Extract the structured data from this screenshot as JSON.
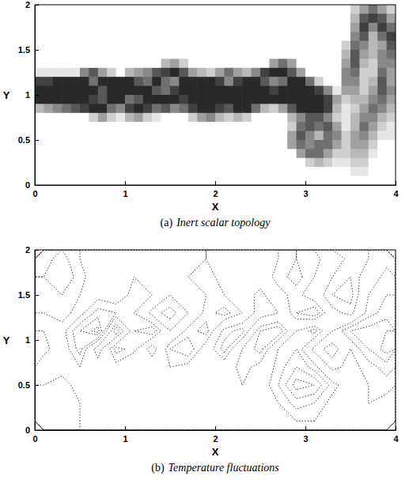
{
  "chart_data": [
    {
      "type": "heatmap",
      "label": "(a)",
      "caption": "Inert scalar topology",
      "xlabel": "X",
      "ylabel": "Y",
      "xlim": [
        0,
        4
      ],
      "ylim": [
        0,
        2
      ],
      "xticks": [
        0,
        1,
        2,
        3,
        4
      ],
      "yticks": [
        0,
        0.5,
        1,
        1.5,
        2
      ],
      "color": "#111111",
      "zlim": [
        0,
        1
      ],
      "cells": [
        [
          0,
          0,
          0,
          0,
          0,
          0,
          0,
          0,
          0,
          0,
          0,
          0,
          0,
          0,
          0,
          0,
          0,
          0,
          0,
          0,
          0,
          0,
          0,
          0,
          0,
          0,
          0,
          0,
          0,
          0,
          0,
          0,
          0,
          0,
          0,
          0.2,
          0.4,
          0.6,
          0.4,
          0.2
        ],
        [
          0,
          0,
          0,
          0,
          0,
          0,
          0,
          0,
          0,
          0,
          0,
          0,
          0,
          0,
          0,
          0,
          0,
          0,
          0,
          0,
          0,
          0,
          0,
          0,
          0,
          0,
          0,
          0,
          0,
          0,
          0,
          0,
          0,
          0,
          0,
          0.3,
          0.7,
          0.8,
          0.7,
          0.4
        ],
        [
          0,
          0,
          0,
          0,
          0,
          0,
          0,
          0,
          0,
          0,
          0,
          0,
          0,
          0,
          0,
          0,
          0,
          0,
          0,
          0,
          0,
          0,
          0,
          0,
          0,
          0,
          0,
          0,
          0,
          0,
          0,
          0,
          0,
          0,
          0,
          0.4,
          0.8,
          0.5,
          0.8,
          0.6
        ],
        [
          0,
          0,
          0,
          0,
          0,
          0,
          0,
          0,
          0,
          0,
          0,
          0,
          0,
          0,
          0,
          0,
          0,
          0,
          0,
          0,
          0,
          0,
          0,
          0,
          0,
          0,
          0,
          0,
          0,
          0,
          0,
          0,
          0,
          0,
          0,
          0.5,
          0.7,
          0.3,
          0.6,
          0.8
        ],
        [
          0,
          0,
          0,
          0,
          0,
          0,
          0,
          0,
          0,
          0,
          0,
          0,
          0,
          0,
          0,
          0,
          0,
          0,
          0,
          0,
          0,
          0,
          0,
          0,
          0,
          0,
          0,
          0,
          0,
          0,
          0,
          0,
          0,
          0,
          0.2,
          0.6,
          0.5,
          0.3,
          0.4,
          0.7
        ],
        [
          0,
          0,
          0,
          0,
          0,
          0,
          0,
          0,
          0,
          0,
          0,
          0,
          0,
          0,
          0,
          0,
          0,
          0,
          0,
          0,
          0,
          0,
          0,
          0,
          0,
          0,
          0,
          0,
          0,
          0,
          0,
          0,
          0,
          0,
          0.3,
          0.7,
          0.4,
          0.3,
          0.5,
          0.6
        ],
        [
          0,
          0,
          0,
          0,
          0,
          0,
          0,
          0,
          0,
          0,
          0,
          0,
          0,
          0,
          0.3,
          0.4,
          0.2,
          0,
          0,
          0,
          0,
          0,
          0,
          0,
          0,
          0,
          0.4,
          0.6,
          0.4,
          0,
          0,
          0,
          0,
          0,
          0.4,
          0.7,
          0.3,
          0.2,
          0.5,
          0.5
        ],
        [
          0.1,
          0.1,
          0.1,
          0.1,
          0.1,
          0.5,
          0.7,
          0.4,
          0.2,
          0,
          0.3,
          0.4,
          0.5,
          0.7,
          0.8,
          0.9,
          0.7,
          0.4,
          0.3,
          0.2,
          0.4,
          0.6,
          0.4,
          0.3,
          0.5,
          0.8,
          0.9,
          0.9,
          0.7,
          0.4,
          0,
          0,
          0,
          0,
          0.5,
          0.6,
          0.2,
          0.2,
          0.6,
          0.4
        ],
        [
          0.8,
          0.8,
          0.9,
          0.9,
          0.9,
          0.9,
          0.6,
          0.9,
          0.9,
          0.9,
          0.9,
          0.7,
          0.6,
          0.9,
          0.6,
          0.5,
          0.9,
          0.9,
          0.9,
          0.9,
          0.8,
          0.5,
          0.8,
          0.9,
          0.9,
          0.7,
          0.5,
          0.6,
          0.9,
          0.9,
          0.6,
          0.2,
          0,
          0,
          0.5,
          0.5,
          0.2,
          0.3,
          0.7,
          0.4
        ],
        [
          0.9,
          0.9,
          0.9,
          0.9,
          0.9,
          0.9,
          0.9,
          0.7,
          0.9,
          0.9,
          0.9,
          0.9,
          0.9,
          0.7,
          0.6,
          0.8,
          0.9,
          0.9,
          0.9,
          0.9,
          0.9,
          0.9,
          0.9,
          0.9,
          0.9,
          0.9,
          0.8,
          0.9,
          0.9,
          0.9,
          0.9,
          0.8,
          0.5,
          0.1,
          0.4,
          0.4,
          0.2,
          0.4,
          0.7,
          0.5
        ],
        [
          0.9,
          0.9,
          0.9,
          0.9,
          0.9,
          0.9,
          0.8,
          0.7,
          0.9,
          0.9,
          0.6,
          0.7,
          0.9,
          0.9,
          0.9,
          0.9,
          0.8,
          0.9,
          0.9,
          0.9,
          0.9,
          0.9,
          0.9,
          0.9,
          0.9,
          0.9,
          0.9,
          0.9,
          0.9,
          0.9,
          0.9,
          0.9,
          0.8,
          0.4,
          0.2,
          0.3,
          0.3,
          0.5,
          0.6,
          0.4
        ],
        [
          0.3,
          0.4,
          0.5,
          0.6,
          0.7,
          0.8,
          0.9,
          0.9,
          0.6,
          0.5,
          0.8,
          0.9,
          0.8,
          0.6,
          0.7,
          0.5,
          0.6,
          0.8,
          0.9,
          0.9,
          0.8,
          0.7,
          0.9,
          0.9,
          0.6,
          0.3,
          0.2,
          0.4,
          0.7,
          0.9,
          0.9,
          0.9,
          0.8,
          0.3,
          0.1,
          0.2,
          0.4,
          0.6,
          0.5,
          0.3
        ],
        [
          0,
          0,
          0,
          0,
          0,
          0,
          0.2,
          0.4,
          0.2,
          0.1,
          0.3,
          0.4,
          0.2,
          0.1,
          0,
          0,
          0,
          0.2,
          0.4,
          0.5,
          0.3,
          0.2,
          0.3,
          0.2,
          0,
          0,
          0,
          0,
          0.3,
          0.5,
          0.7,
          0.7,
          0.5,
          0.2,
          0.1,
          0.3,
          0.5,
          0.5,
          0.3,
          0.2
        ],
        [
          0,
          0,
          0,
          0,
          0,
          0,
          0,
          0,
          0,
          0,
          0,
          0,
          0,
          0,
          0,
          0,
          0,
          0,
          0,
          0,
          0,
          0,
          0,
          0,
          0,
          0,
          0,
          0,
          0.2,
          0.6,
          0.7,
          0.6,
          0.7,
          0.4,
          0.1,
          0.3,
          0.6,
          0.4,
          0.2,
          0.1
        ],
        [
          0,
          0,
          0,
          0,
          0,
          0,
          0,
          0,
          0,
          0,
          0,
          0,
          0,
          0,
          0,
          0,
          0,
          0,
          0,
          0,
          0,
          0,
          0,
          0,
          0,
          0,
          0,
          0,
          0.4,
          0.7,
          0.5,
          0.3,
          0.6,
          0.5,
          0.2,
          0.4,
          0.5,
          0.3,
          0.1,
          0.1
        ],
        [
          0,
          0,
          0,
          0,
          0,
          0,
          0,
          0,
          0,
          0,
          0,
          0,
          0,
          0,
          0,
          0,
          0,
          0,
          0,
          0,
          0,
          0,
          0,
          0,
          0,
          0,
          0,
          0,
          0.4,
          0.6,
          0.5,
          0.6,
          0.6,
          0.4,
          0.2,
          0.4,
          0.4,
          0.2,
          0,
          0
        ],
        [
          0,
          0,
          0,
          0,
          0,
          0,
          0,
          0,
          0,
          0,
          0,
          0,
          0,
          0,
          0,
          0,
          0,
          0,
          0,
          0,
          0,
          0,
          0,
          0,
          0,
          0,
          0,
          0,
          0,
          0.4,
          0.6,
          0.6,
          0.4,
          0.2,
          0.2,
          0.3,
          0.3,
          0.1,
          0,
          0
        ],
        [
          0,
          0,
          0,
          0,
          0,
          0,
          0,
          0,
          0,
          0,
          0,
          0,
          0,
          0,
          0,
          0,
          0,
          0,
          0,
          0,
          0,
          0,
          0,
          0,
          0,
          0,
          0,
          0,
          0,
          0,
          0.2,
          0.3,
          0.2,
          0.1,
          0.1,
          0.2,
          0.2,
          0,
          0,
          0
        ],
        [
          0,
          0,
          0,
          0,
          0,
          0,
          0,
          0,
          0,
          0,
          0,
          0,
          0,
          0,
          0,
          0,
          0,
          0,
          0,
          0,
          0,
          0,
          0,
          0,
          0,
          0,
          0,
          0,
          0,
          0,
          0,
          0,
          0,
          0,
          0,
          0.1,
          0.1,
          0,
          0,
          0
        ],
        [
          0,
          0,
          0,
          0,
          0,
          0,
          0,
          0,
          0,
          0,
          0,
          0,
          0,
          0,
          0,
          0,
          0,
          0,
          0,
          0,
          0,
          0,
          0,
          0,
          0,
          0,
          0,
          0,
          0,
          0,
          0,
          0,
          0,
          0,
          0,
          0,
          0,
          0,
          0,
          0
        ]
      ]
    },
    {
      "type": "contour",
      "label": "(b)",
      "caption": "Temperature fluctuations",
      "xlabel": "X",
      "ylabel": "Y",
      "xlim": [
        0,
        4
      ],
      "ylim": [
        0,
        2
      ],
      "xticks": [
        0,
        1,
        2,
        3,
        4
      ],
      "yticks": [
        0,
        0.5,
        1,
        1.5,
        2
      ],
      "color": "#333333",
      "line_style": "dotted",
      "levels": [
        -0.8,
        -0.6,
        -0.4,
        -0.2,
        0.2,
        0.4,
        0.6,
        0.8
      ],
      "cells": [
        [
          0.3,
          0.5,
          0.2,
          0,
          0.1,
          0,
          -0.2,
          0,
          0.1,
          0.2,
          0,
          -0.2,
          -0.1,
          0.2,
          0.4,
          0.3,
          0,
          -0.3,
          -0.2,
          0.1
        ],
        [
          0.4,
          0.6,
          0.3,
          0,
          0.1,
          0.2,
          0,
          -0.1,
          0.2,
          0.3,
          0.1,
          -0.1,
          0,
          0.3,
          0.5,
          0.2,
          -0.2,
          -0.4,
          0,
          0.3
        ],
        [
          0.3,
          0.4,
          0.2,
          0.1,
          0,
          0.3,
          0.2,
          -0.2,
          0,
          0.2,
          0.2,
          0,
          -0.3,
          0.1,
          0.3,
          0,
          -0.4,
          -0.5,
          0.2,
          0.4
        ],
        [
          0.2,
          0.3,
          0.1,
          0.5,
          0.4,
          0.2,
          -0.3,
          -0.5,
          -0.2,
          0.3,
          0.5,
          0.2,
          -0.4,
          -0.2,
          0.4,
          0.6,
          -0.1,
          -0.3,
          0.3,
          0.5
        ],
        [
          -0.2,
          0.1,
          0.6,
          0.9,
          -0.6,
          0.4,
          0.6,
          -0.2,
          0.3,
          0.5,
          -0.3,
          -0.5,
          0.4,
          0.6,
          -0.2,
          -0.5,
          0.2,
          0.6,
          0.7,
          0.8
        ],
        [
          -0.3,
          0,
          0.5,
          -0.4,
          0.5,
          0.3,
          -0.4,
          0.4,
          0.6,
          0,
          -0.5,
          0.2,
          0.5,
          -0.2,
          -0.4,
          0.3,
          0.5,
          0.2,
          0.6,
          0.9
        ],
        [
          0,
          0.1,
          0.2,
          0,
          0.1,
          -0.2,
          0.1,
          0.2,
          0.1,
          -0.2,
          0,
          0.3,
          0.1,
          -0.3,
          -0.6,
          -0.3,
          0.3,
          0.1,
          0.3,
          0.5
        ],
        [
          0.2,
          0.3,
          0.1,
          0,
          0,
          -0.1,
          0,
          0.1,
          0,
          -0.1,
          0.1,
          0.2,
          0,
          -0.4,
          -0.9,
          -0.8,
          -0.3,
          0,
          0.2,
          0.3
        ],
        [
          0.3,
          0.4,
          0.2,
          0,
          -0.1,
          0,
          0.1,
          0,
          -0.1,
          0,
          0.2,
          0.1,
          0,
          -0.2,
          -0.5,
          -0.4,
          -0.1,
          0.1,
          0.2,
          0.1
        ],
        [
          0.3,
          0.4,
          0.2,
          0,
          -0.1,
          0,
          0.1,
          0,
          -0.1,
          0,
          0.1,
          0.1,
          0,
          -0.1,
          -0.2,
          -0.2,
          0,
          0.1,
          0.1,
          0
        ]
      ]
    }
  ]
}
